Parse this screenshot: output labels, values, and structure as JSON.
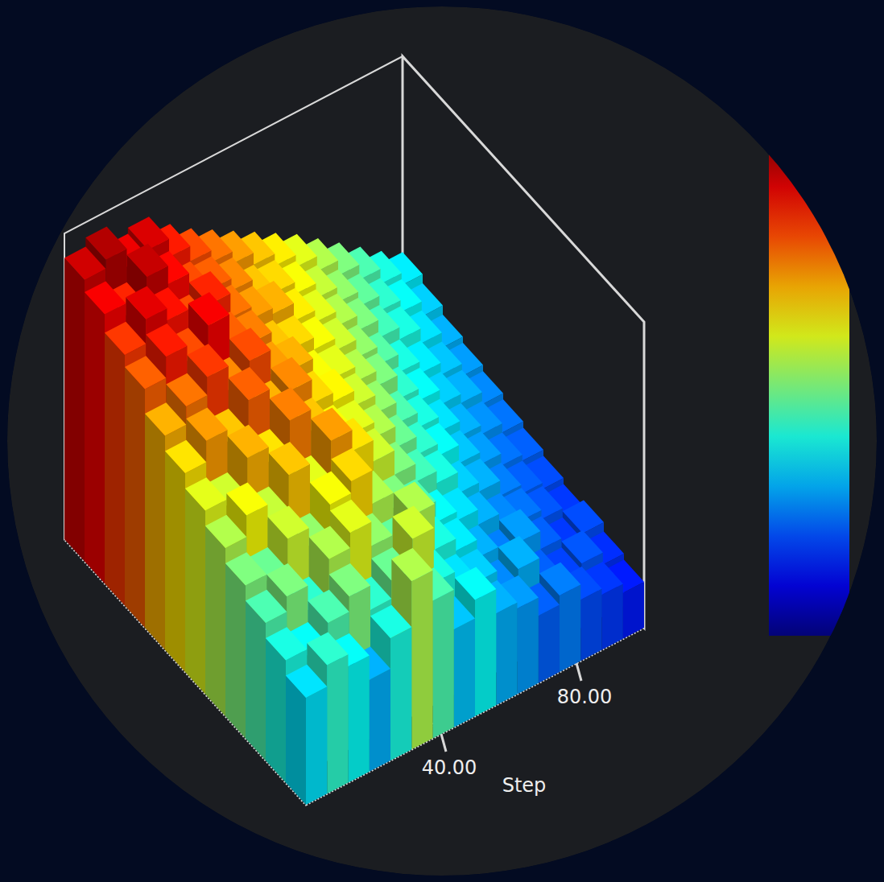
{
  "chart_data": {
    "type": "surface",
    "x_label": "Step",
    "xlim": [
      0,
      100
    ],
    "xticks": [
      {
        "value": 40,
        "label": "40.00"
      },
      {
        "value": 80,
        "label": "80.00"
      }
    ],
    "zlim": [
      0,
      1
    ],
    "cells": [
      [
        0.35,
        0.42,
        0.38,
        0.3,
        0.4,
        0.55,
        0.45,
        0.32,
        0.38,
        0.3,
        0.28,
        0.22,
        0.25,
        0.2,
        0.18,
        0.15
      ],
      [
        0.4,
        0.38,
        0.45,
        0.5,
        0.42,
        0.48,
        0.58,
        0.4,
        0.35,
        0.33,
        0.26,
        0.3,
        0.22,
        0.19,
        0.21,
        0.17
      ],
      [
        0.45,
        0.5,
        0.42,
        0.55,
        0.6,
        0.52,
        0.47,
        0.55,
        0.4,
        0.36,
        0.3,
        0.25,
        0.28,
        0.22,
        0.18,
        0.2
      ],
      [
        0.5,
        0.48,
        0.58,
        0.52,
        0.62,
        0.66,
        0.55,
        0.5,
        0.45,
        0.38,
        0.35,
        0.3,
        0.26,
        0.24,
        0.21,
        0.18
      ],
      [
        0.55,
        0.62,
        0.57,
        0.68,
        0.6,
        0.72,
        0.65,
        0.58,
        0.5,
        0.44,
        0.4,
        0.33,
        0.3,
        0.25,
        0.22,
        0.2
      ],
      [
        0.6,
        0.58,
        0.7,
        0.65,
        0.75,
        0.68,
        0.62,
        0.6,
        0.55,
        0.48,
        0.42,
        0.38,
        0.32,
        0.28,
        0.24,
        0.22
      ],
      [
        0.65,
        0.72,
        0.68,
        0.78,
        0.7,
        0.74,
        0.66,
        0.63,
        0.58,
        0.52,
        0.45,
        0.4,
        0.35,
        0.3,
        0.27,
        0.24
      ],
      [
        0.7,
        0.76,
        0.82,
        0.74,
        0.8,
        0.72,
        0.7,
        0.62,
        0.6,
        0.55,
        0.5,
        0.42,
        0.38,
        0.33,
        0.3,
        0.26
      ],
      [
        0.78,
        0.85,
        0.8,
        0.88,
        0.78,
        0.75,
        0.68,
        0.66,
        0.62,
        0.58,
        0.52,
        0.46,
        0.4,
        0.36,
        0.32,
        0.28
      ],
      [
        0.82,
        0.9,
        0.86,
        0.8,
        0.84,
        0.76,
        0.72,
        0.7,
        0.64,
        0.6,
        0.55,
        0.5,
        0.44,
        0.4,
        0.35,
        0.3
      ],
      [
        0.88,
        0.84,
        0.93,
        0.87,
        0.8,
        0.78,
        0.74,
        0.68,
        0.66,
        0.62,
        0.57,
        0.52,
        0.47,
        0.42,
        0.38,
        0.33
      ],
      [
        0.92,
        0.95,
        0.89,
        0.91,
        0.85,
        0.8,
        0.76,
        0.72,
        0.68,
        0.64,
        0.6,
        0.55,
        0.5,
        0.45,
        0.4,
        0.36
      ]
    ]
  }
}
